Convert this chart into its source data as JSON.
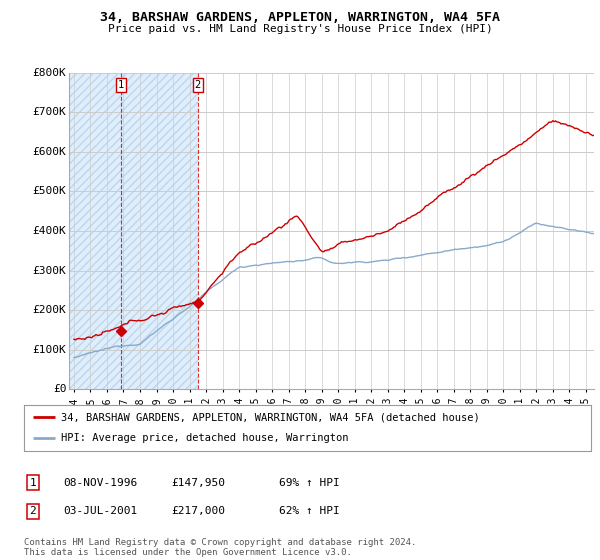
{
  "title": "34, BARSHAW GARDENS, APPLETON, WARRINGTON, WA4 5FA",
  "subtitle": "Price paid vs. HM Land Registry's House Price Index (HPI)",
  "ylim": [
    0,
    800000
  ],
  "yticks": [
    0,
    100000,
    200000,
    300000,
    400000,
    500000,
    600000,
    700000,
    800000
  ],
  "ytick_labels": [
    "£0",
    "£100K",
    "£200K",
    "£300K",
    "£400K",
    "£500K",
    "£600K",
    "£700K",
    "£800K"
  ],
  "background_color": "#ffffff",
  "grid_color": "#cccccc",
  "hatch_fill_color": "#ddeeff",
  "sale1_year": 1996.86,
  "sale1_price": 147950,
  "sale2_year": 2001.5,
  "sale2_price": 217000,
  "sale_color": "#cc0000",
  "hpi_color": "#88aacc",
  "legend_label_sale": "34, BARSHAW GARDENS, APPLETON, WARRINGTON, WA4 5FA (detached house)",
  "legend_label_hpi": "HPI: Average price, detached house, Warrington",
  "footnote": "Contains HM Land Registry data © Crown copyright and database right 2024.\nThis data is licensed under the Open Government Licence v3.0.",
  "table_row1": [
    "1",
    "08-NOV-1996",
    "£147,950",
    "69% ↑ HPI"
  ],
  "table_row2": [
    "2",
    "03-JUL-2001",
    "£217,000",
    "62% ↑ HPI"
  ],
  "vline1_year": 1996.86,
  "vline2_year": 2001.5,
  "xmin": 1993.7,
  "xmax": 2025.5,
  "xtick_start": 1994,
  "xtick_end": 2025
}
